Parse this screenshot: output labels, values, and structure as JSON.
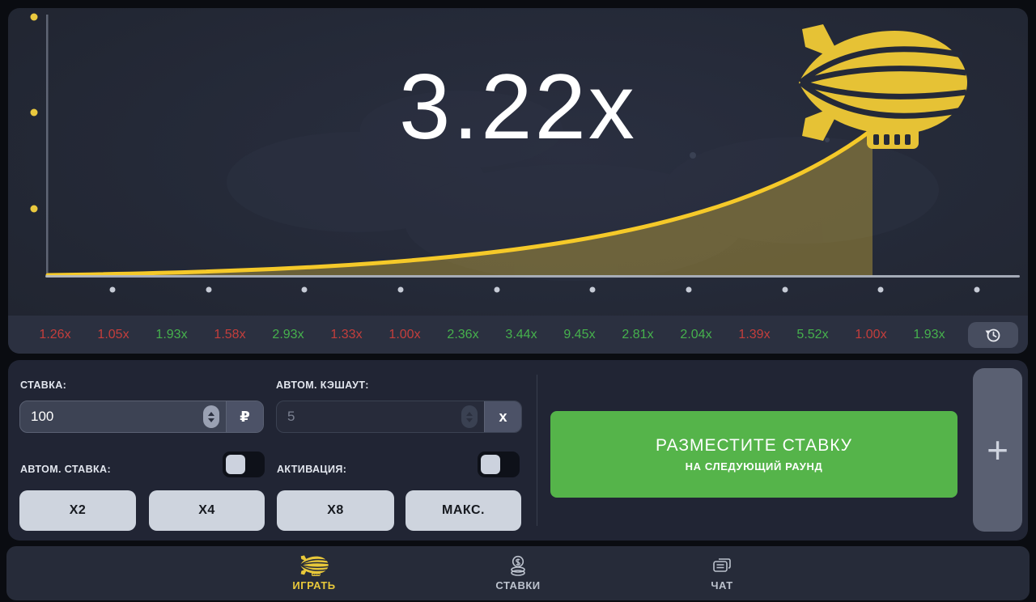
{
  "game": {
    "multiplier": "3.22x",
    "history": [
      {
        "value": "1.26x",
        "tone": "red"
      },
      {
        "value": "1.05x",
        "tone": "red"
      },
      {
        "value": "1.93x",
        "tone": "green"
      },
      {
        "value": "1.58x",
        "tone": "red"
      },
      {
        "value": "2.93x",
        "tone": "green"
      },
      {
        "value": "1.33x",
        "tone": "red"
      },
      {
        "value": "1.00x",
        "tone": "red"
      },
      {
        "value": "2.36x",
        "tone": "green"
      },
      {
        "value": "3.44x",
        "tone": "green"
      },
      {
        "value": "9.45x",
        "tone": "green"
      },
      {
        "value": "2.81x",
        "tone": "green"
      },
      {
        "value": "2.04x",
        "tone": "green"
      },
      {
        "value": "1.39x",
        "tone": "red"
      },
      {
        "value": "5.52x",
        "tone": "green"
      },
      {
        "value": "1.00x",
        "tone": "red"
      },
      {
        "value": "1.93x",
        "tone": "green"
      }
    ]
  },
  "bet_form": {
    "bet_label": "СТАВКА:",
    "bet_value": "100",
    "bet_currency": "₽",
    "cashout_label": "АВТОМ. КЭШАУТ:",
    "cashout_value": "5",
    "cashout_suffix": "x",
    "auto_bet_label": "АВТОМ. СТАВКА:",
    "activation_label": "АКТИВАЦИЯ:",
    "multiplier_buttons": [
      "X2",
      "X4",
      "X8",
      "МАКС."
    ],
    "place_bet_line1": "РАЗМЕСТИТЕ СТАВКУ",
    "place_bet_line2": "НА СЛЕДУЮЩИЙ РАУНД",
    "add_bet_label": "+"
  },
  "nav": {
    "items": [
      {
        "label": "ИГРАТЬ",
        "icon": "blimp-icon",
        "active": true
      },
      {
        "label": "СТАВКИ",
        "icon": "coins-icon",
        "active": false
      },
      {
        "label": "ЧАТ",
        "icon": "chat-icon",
        "active": false
      }
    ]
  },
  "colors": {
    "accent_yellow": "#eec82f",
    "win_green": "#46b14d",
    "lose_red": "#c43e3c",
    "cta_green": "#55b44a"
  }
}
